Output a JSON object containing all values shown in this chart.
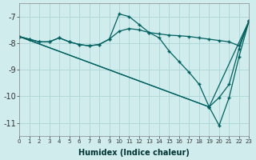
{
  "xlabel": "Humidex (Indice chaleur)",
  "bg_color": "#d0ecec",
  "grid_color": "#b0d8d8",
  "line_color": "#006060",
  "xlim": [
    0,
    23
  ],
  "ylim": [
    -11.5,
    -6.5
  ],
  "yticks": [
    -11,
    -10,
    -9,
    -8,
    -7
  ],
  "xticks": [
    0,
    1,
    2,
    3,
    4,
    5,
    6,
    7,
    8,
    9,
    10,
    11,
    12,
    13,
    14,
    15,
    16,
    17,
    18,
    19,
    20,
    21,
    22,
    23
  ],
  "lines": [
    {
      "x": [
        0,
        1,
        2,
        3,
        4,
        5,
        6,
        7,
        8,
        9,
        10,
        11,
        12,
        13,
        14,
        15,
        16,
        17,
        18,
        19,
        20,
        21,
        22,
        23
      ],
      "y": [
        -7.75,
        -7.85,
        -7.95,
        -7.95,
        -7.8,
        -7.95,
        -8.05,
        -8.1,
        -8.05,
        -7.85,
        -7.55,
        -7.45,
        -7.5,
        -7.6,
        -7.65,
        -7.7,
        -7.72,
        -7.75,
        -7.8,
        -7.85,
        -7.9,
        -7.95,
        -8.1,
        -7.15
      ]
    },
    {
      "x": [
        0,
        1,
        2,
        3,
        4,
        5,
        6,
        7,
        8,
        9,
        10,
        11,
        12,
        13,
        14,
        15,
        16,
        17,
        18,
        19,
        23
      ],
      "y": [
        -7.75,
        -7.85,
        -7.95,
        -7.95,
        -7.8,
        -7.95,
        -8.05,
        -8.1,
        -8.05,
        -7.85,
        -6.9,
        -7.0,
        -7.3,
        -7.6,
        -7.8,
        -8.3,
        -8.7,
        -9.1,
        -9.55,
        -10.4,
        -7.15
      ]
    },
    {
      "x": [
        0,
        19,
        20,
        21,
        22,
        23
      ],
      "y": [
        -7.75,
        -10.4,
        -11.1,
        -10.05,
        -8.5,
        -7.15
      ]
    },
    {
      "x": [
        0,
        19,
        20,
        21,
        22,
        23
      ],
      "y": [
        -7.75,
        -10.4,
        -10.05,
        -9.55,
        -8.2,
        -7.15
      ]
    }
  ]
}
